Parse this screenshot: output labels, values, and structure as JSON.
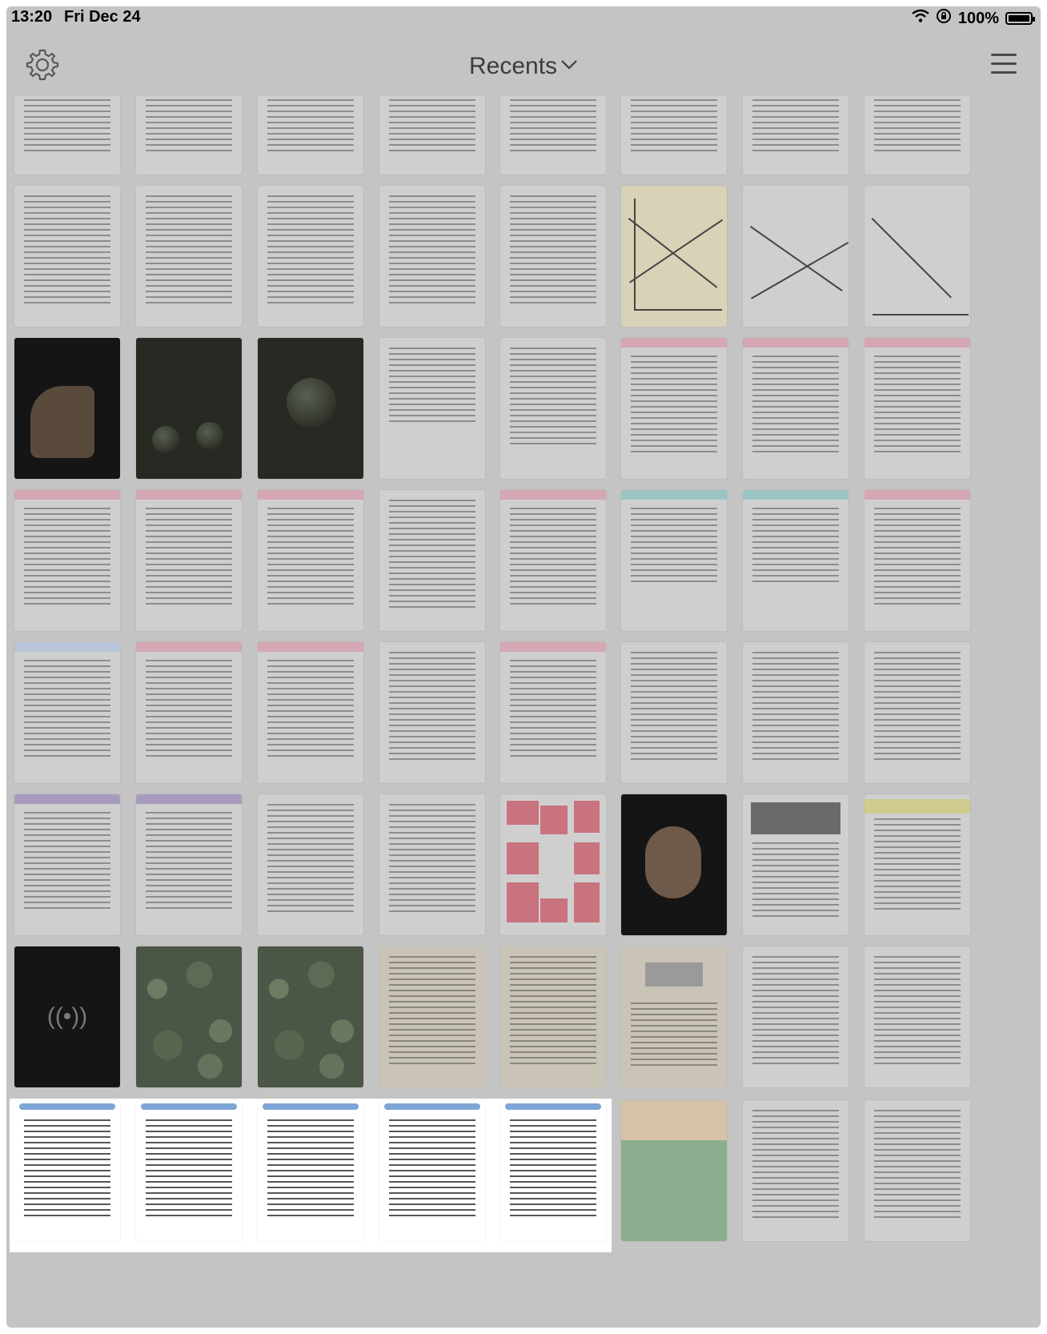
{
  "status_bar": {
    "time": "13:20",
    "date": "Fri Dec 24",
    "battery": "100%"
  },
  "nav": {
    "title": "Recents",
    "title_chevron": "chevron-down-icon",
    "left_icon": "gear-icon",
    "right_icon": "menu-icon"
  },
  "colors": {
    "dim_overlay": "#c4c4c4",
    "tile_bright": "#ffffff",
    "banner_blue": "#7da5d6"
  }
}
